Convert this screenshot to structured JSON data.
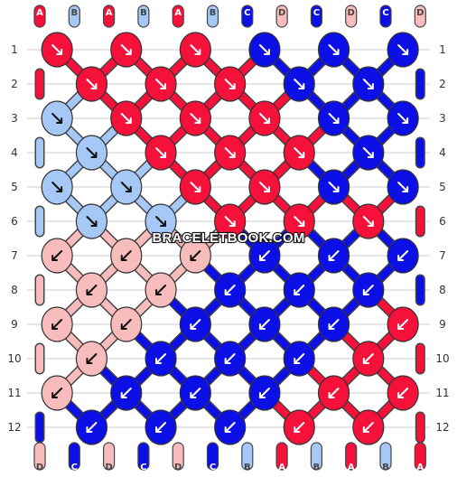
{
  "site_watermark": "BRACELETBOOK.COM",
  "colors": {
    "A": "#f5113a",
    "B": "#a6c8f7",
    "C": "#0c10e6",
    "D": "#f8bcbc",
    "grid_line": "#cccccc",
    "label_text": "#333333",
    "arrow": "#111111",
    "arrow_on_dark": "#ffffff"
  },
  "top_threads": [
    "A",
    "B",
    "A",
    "B",
    "A",
    "B",
    "C",
    "D",
    "C",
    "D",
    "C",
    "D"
  ],
  "bottom_threads": [
    "D",
    "C",
    "D",
    "C",
    "D",
    "C",
    "B",
    "A",
    "B",
    "A",
    "B",
    "A"
  ],
  "row_labels": [
    "1",
    "2",
    "3",
    "4",
    "5",
    "6",
    "7",
    "8",
    "9",
    "10",
    "11",
    "12"
  ],
  "knot_rows": [
    [
      "A",
      "A",
      "A",
      "C",
      "C",
      "C"
    ],
    [
      "A",
      "A",
      "A",
      "C",
      "C"
    ],
    [
      "B",
      "A",
      "A",
      "A",
      "C",
      "C"
    ],
    [
      "B",
      "A",
      "A",
      "A",
      "C"
    ],
    [
      "B",
      "B",
      "A",
      "A",
      "C",
      "C"
    ],
    [
      "B",
      "B",
      "A",
      "A",
      "A"
    ],
    [
      "D",
      "D",
      "D",
      "C",
      "C",
      "C"
    ],
    [
      "D",
      "D",
      "C",
      "C",
      "C"
    ],
    [
      "D",
      "D",
      "C",
      "C",
      "C",
      "A"
    ],
    [
      "D",
      "C",
      "C",
      "C",
      "A"
    ],
    [
      "D",
      "C",
      "C",
      "C",
      "A",
      "A"
    ],
    [
      "C",
      "C",
      "C",
      "A",
      "A"
    ]
  ],
  "knot_directions": [
    [
      "se",
      "se",
      "se",
      "se",
      "se",
      "se"
    ],
    [
      "se",
      "se",
      "se",
      "se",
      "se"
    ],
    [
      "se",
      "se",
      "se",
      "se",
      "se",
      "se"
    ],
    [
      "se",
      "se",
      "se",
      "se",
      "se"
    ],
    [
      "se",
      "se",
      "se",
      "se",
      "se",
      "se"
    ],
    [
      "se",
      "se",
      "se",
      "se",
      "se"
    ],
    [
      "sw",
      "sw",
      "sw",
      "sw",
      "sw",
      "sw"
    ],
    [
      "sw",
      "sw",
      "sw",
      "sw",
      "sw"
    ],
    [
      "sw",
      "sw",
      "sw",
      "sw",
      "sw",
      "sw"
    ],
    [
      "sw",
      "sw",
      "sw",
      "sw",
      "sw"
    ],
    [
      "sw",
      "sw",
      "sw",
      "sw",
      "sw",
      "sw"
    ],
    [
      "sw",
      "sw",
      "sw",
      "sw",
      "sw"
    ]
  ]
}
